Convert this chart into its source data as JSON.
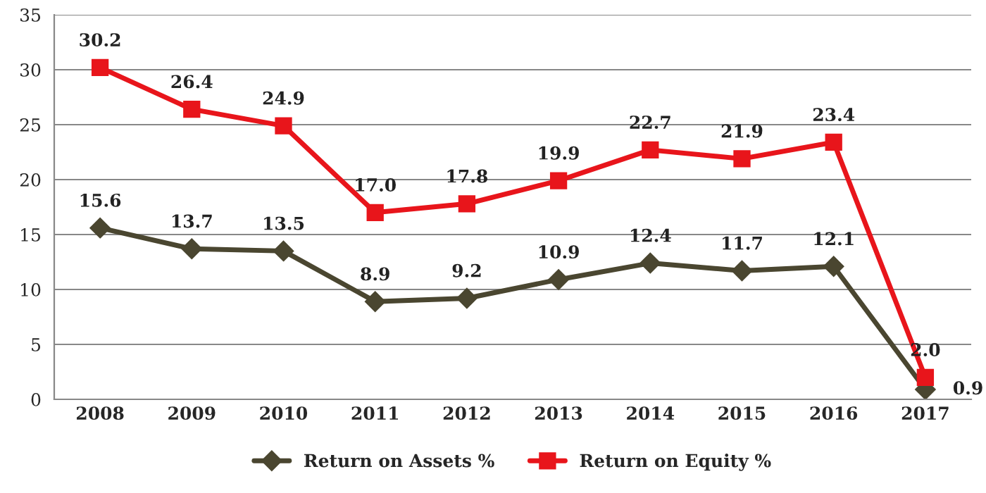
{
  "chart_data": {
    "type": "line",
    "categories": [
      "2008",
      "2009",
      "2010",
      "2011",
      "2012",
      "2013",
      "2014",
      "2015",
      "2016",
      "2017"
    ],
    "series": [
      {
        "name": "Return on Assets %",
        "color": "#4a4630",
        "marker": "diamond",
        "values": [
          15.6,
          13.7,
          13.5,
          8.9,
          9.2,
          10.9,
          12.4,
          11.7,
          12.1,
          0.9
        ],
        "value_labels": [
          "15.6",
          "13.7",
          "13.5",
          "8.9",
          "9.2",
          "10.9",
          "12.4",
          "11.7",
          "12.1",
          "0.9"
        ]
      },
      {
        "name": "Return on Equity %",
        "color": "#e8151b",
        "marker": "square",
        "values": [
          30.2,
          26.4,
          24.9,
          17.0,
          17.8,
          19.9,
          22.7,
          21.9,
          23.4,
          2.0
        ],
        "value_labels": [
          "30.2",
          "26.4",
          "24.9",
          "17.0",
          "17.8",
          "19.9",
          "22.7",
          "21.9",
          "23.4",
          "2.0"
        ]
      }
    ],
    "ylim": [
      0,
      35
    ],
    "yticks": [
      0,
      5,
      10,
      15,
      20,
      25,
      30,
      35
    ],
    "grid": "y",
    "legend": "bottom",
    "line_style": "solid"
  }
}
